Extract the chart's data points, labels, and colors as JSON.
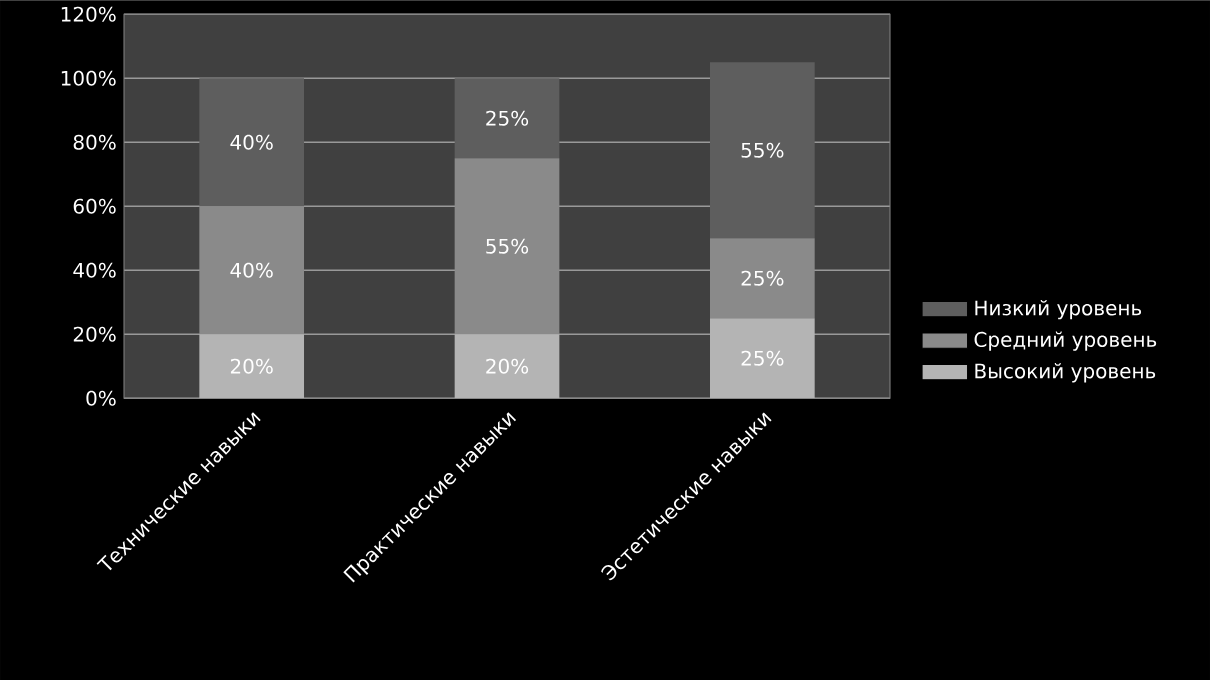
{
  "chart_data": {
    "type": "bar",
    "stacked": true,
    "categories": [
      "Технические навыки",
      "Практические навыки",
      "Эстетические навыки"
    ],
    "series": [
      {
        "name": "Высокий уровень",
        "color": "#b4b4b4",
        "values": [
          20,
          20,
          25
        ],
        "value_labels": [
          "20%",
          "20%",
          "25%"
        ]
      },
      {
        "name": "Средний уровень",
        "color": "#8a8a8a",
        "values": [
          40,
          55,
          25
        ],
        "value_labels": [
          "40%",
          "55%",
          "25%"
        ]
      },
      {
        "name": "Низкий уровень",
        "color": "#5e5e5e",
        "values": [
          40,
          25,
          55
        ],
        "value_labels": [
          "40%",
          "25%",
          "55%"
        ]
      }
    ],
    "ylim": [
      0,
      120
    ],
    "yticks": [
      {
        "value": 0,
        "label": "0%"
      },
      {
        "value": 20,
        "label": "20%"
      },
      {
        "value": 40,
        "label": "40%"
      },
      {
        "value": 60,
        "label": "60%"
      },
      {
        "value": 80,
        "label": "80%"
      },
      {
        "value": 100,
        "label": "100%"
      },
      {
        "value": 120,
        "label": "120%"
      }
    ],
    "grid": "y",
    "legend": "right"
  }
}
